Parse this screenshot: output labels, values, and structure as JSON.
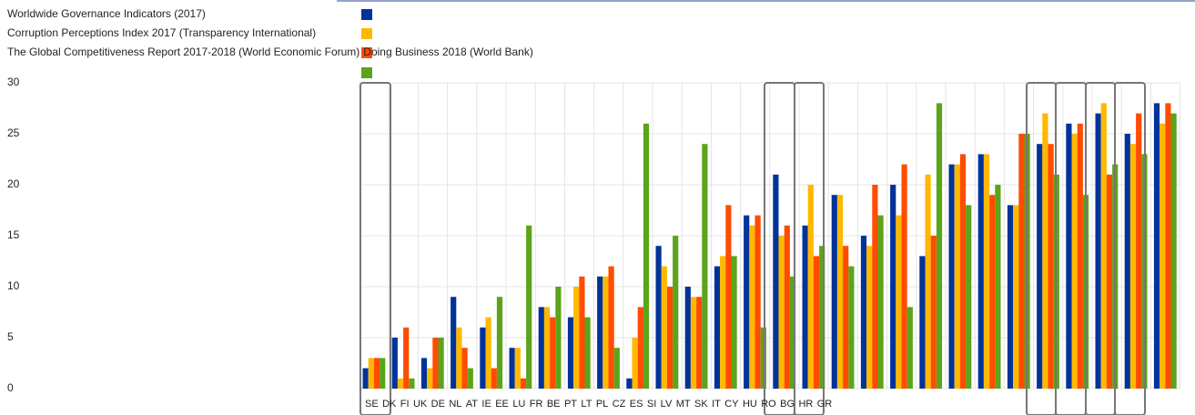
{
  "chart_data": {
    "type": "bar",
    "categories": [
      "SE",
      "DK",
      "FI",
      "UK",
      "DE",
      "NL",
      "AT",
      "IE",
      "EE",
      "LU",
      "FR",
      "BE",
      "PT",
      "LT",
      "PL",
      "CZ",
      "ES",
      "SI",
      "LV",
      "MT",
      "SK",
      "IT",
      "CY",
      "HU",
      "RO",
      "BG",
      "HR",
      "GR"
    ],
    "series": [
      {
        "name": "Worldwide Governance Indicators (2017)",
        "color": "#003399",
        "values": [
          2,
          5,
          3,
          9,
          6,
          4,
          8,
          7,
          11,
          1,
          14,
          10,
          12,
          17,
          21,
          16,
          19,
          15,
          20,
          13,
          22,
          23,
          18,
          24,
          26,
          27,
          25,
          28
        ]
      },
      {
        "name": "Corruption Perceptions Index 2017 (Transparency International)",
        "color": "#ffb800",
        "values": [
          3,
          1,
          2,
          6,
          7,
          4,
          8,
          10,
          11,
          5,
          12,
          9,
          13,
          16,
          15,
          20,
          19,
          14,
          17,
          21,
          22,
          23,
          18,
          27,
          25,
          28,
          24,
          26
        ]
      },
      {
        "name": "The Global Competitiveness Report 2017-2018 (World Economic Forum)",
        "color": "#ff4c00",
        "values": [
          3,
          6,
          5,
          4,
          2,
          1,
          7,
          11,
          12,
          8,
          10,
          9,
          18,
          17,
          16,
          13,
          14,
          20,
          22,
          15,
          23,
          19,
          25,
          24,
          26,
          21,
          27,
          28
        ]
      },
      {
        "name": "Doing Business 2018 (World Bank)",
        "color": "#5ca41b",
        "values": [
          3,
          1,
          5,
          2,
          9,
          16,
          10,
          7,
          4,
          26,
          15,
          24,
          13,
          6,
          11,
          14,
          12,
          17,
          8,
          28,
          18,
          20,
          25,
          21,
          19,
          22,
          23,
          27
        ]
      }
    ],
    "ylim": [
      0,
      30
    ],
    "yticks": [
      0,
      5,
      10,
      15,
      20,
      25,
      30
    ],
    "grid": true
  }
}
